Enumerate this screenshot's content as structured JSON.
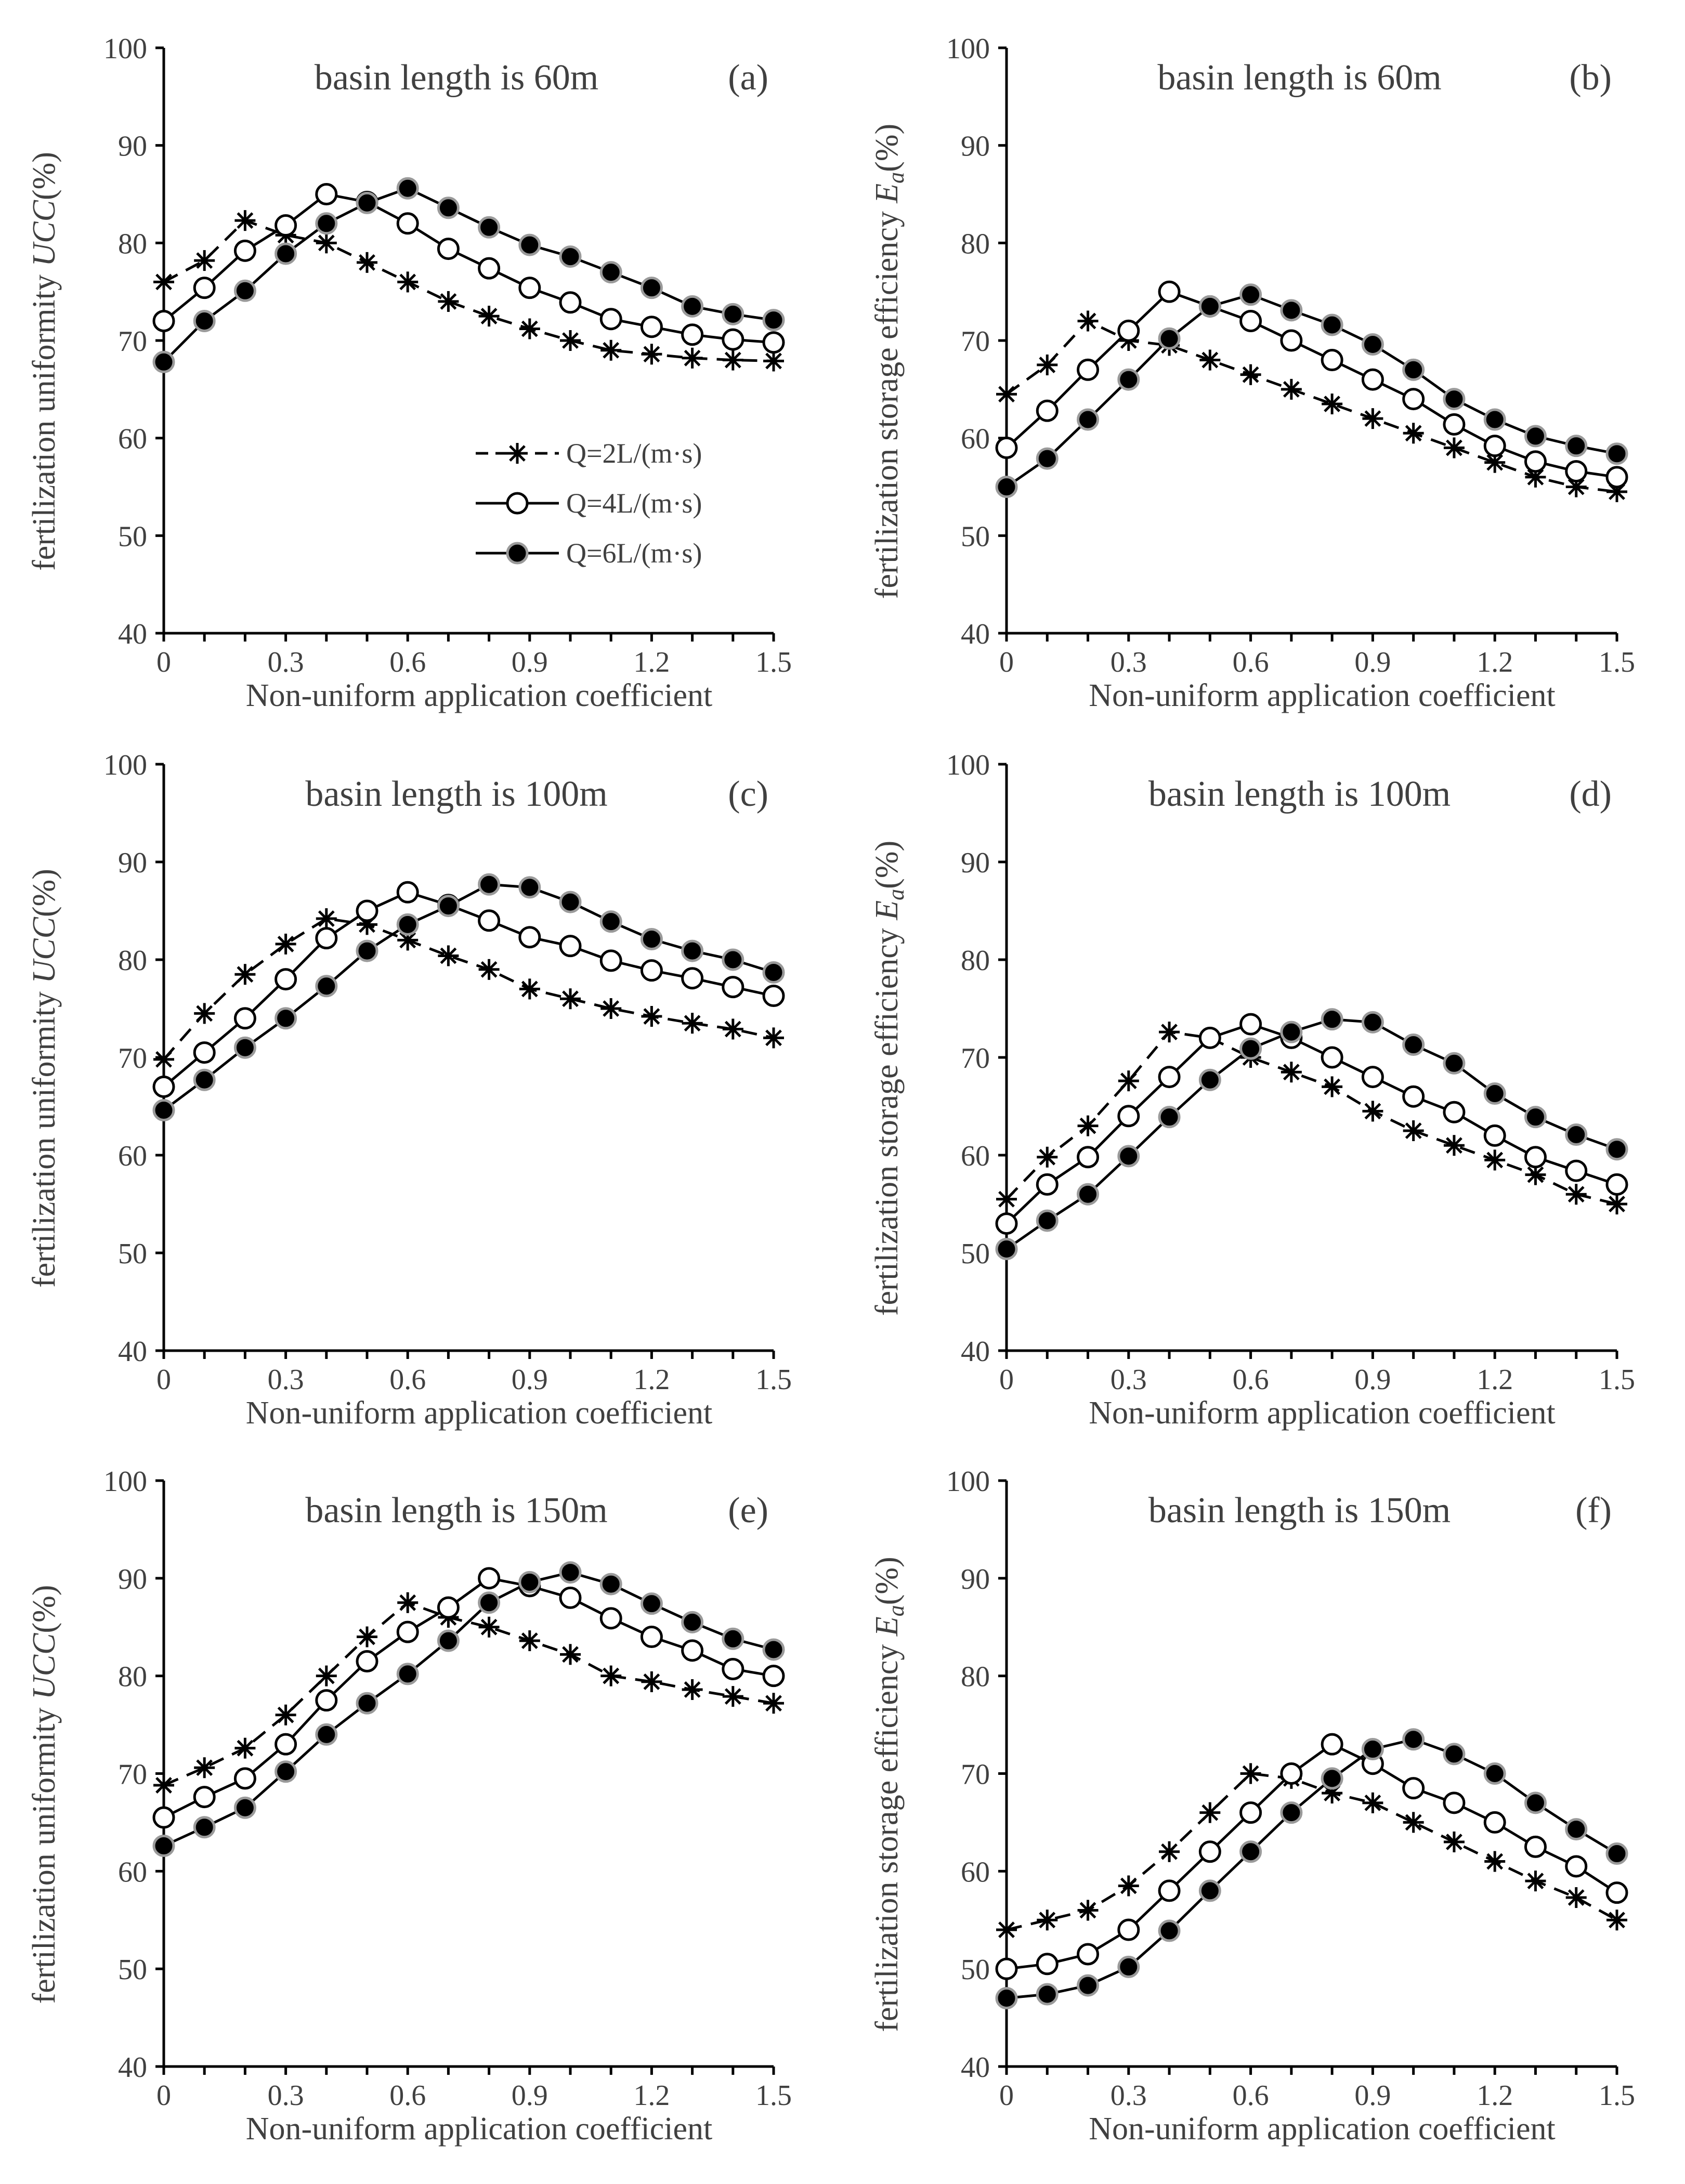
{
  "chart_data": [
    {
      "id": "a",
      "type": "line",
      "title": "basin length is 60m",
      "tag": "(a)",
      "xlabel": "Non-uniform application coefficient",
      "ylabel_text": "fertilization  uniformity ",
      "ylabel_italic": "UCC",
      "ylabel_unit": "(%)",
      "xlim": [
        0,
        1.5
      ],
      "ylim": [
        40,
        100
      ],
      "xticks": [
        "0",
        "0.3",
        "0.6",
        "0.9",
        "1.2",
        "1.5"
      ],
      "yticks": [
        "40",
        "50",
        "60",
        "70",
        "80",
        "90",
        "100"
      ],
      "x": [
        0,
        0.1,
        0.2,
        0.3,
        0.4,
        0.5,
        0.6,
        0.7,
        0.8,
        0.9,
        1.0,
        1.1,
        1.2,
        1.3,
        1.4,
        1.5
      ],
      "legend": true,
      "series": [
        {
          "name": "Q=2L/(m·s)",
          "values": [
            76,
            78.2,
            82.3,
            80.8,
            80,
            78,
            76,
            74,
            72.5,
            71.2,
            70,
            69,
            68.6,
            68.2,
            68.0,
            67.9
          ]
        },
        {
          "name": "Q=4L/(m·s)",
          "values": [
            72,
            75.4,
            79.2,
            81.8,
            85,
            84.2,
            82,
            79.4,
            77.4,
            75.4,
            73.9,
            72.2,
            71.4,
            70.6,
            70.1,
            69.8
          ]
        },
        {
          "name": "Q=6L/(m·s)",
          "values": [
            67.8,
            72,
            75.1,
            78.9,
            82,
            84.1,
            85.6,
            83.6,
            81.6,
            79.8,
            78.6,
            77,
            75.4,
            73.5,
            72.7,
            72.1
          ]
        }
      ]
    },
    {
      "id": "b",
      "type": "line",
      "title": "basin length is 60m",
      "tag": "(b)",
      "xlabel": "Non-uniform application coefficient",
      "ylabel_text": "fertilization  storage efficiency ",
      "ylabel_italic": "E",
      "ylabel_sub": "a",
      "ylabel_unit": "(%)",
      "xlim": [
        0,
        1.5
      ],
      "ylim": [
        40,
        100
      ],
      "xticks": [
        "0",
        "0.3",
        "0.6",
        "0.9",
        "1.2",
        "1.5"
      ],
      "yticks": [
        "40",
        "50",
        "60",
        "70",
        "80",
        "90",
        "100"
      ],
      "x": [
        0,
        0.1,
        0.2,
        0.3,
        0.4,
        0.5,
        0.6,
        0.7,
        0.8,
        0.9,
        1.0,
        1.1,
        1.2,
        1.3,
        1.4,
        1.5
      ],
      "legend": false,
      "series": [
        {
          "name": "Q=2L/(m·s)",
          "values": [
            64.5,
            67.5,
            72,
            70,
            69.5,
            68,
            66.5,
            65,
            63.5,
            62,
            60.5,
            59,
            57.5,
            56,
            55,
            54.5
          ]
        },
        {
          "name": "Q=4L/(m·s)",
          "values": [
            59,
            62.8,
            67,
            71,
            75,
            73.5,
            72,
            70,
            68,
            66,
            64,
            61.4,
            59.2,
            57.6,
            56.6,
            56
          ]
        },
        {
          "name": "Q=6L/(m·s)",
          "values": [
            55,
            57.9,
            61.9,
            66,
            70.2,
            73.5,
            74.7,
            73.1,
            71.6,
            69.6,
            67,
            64,
            61.9,
            60.2,
            59.2,
            58.4
          ]
        }
      ]
    },
    {
      "id": "c",
      "type": "line",
      "title": "basin length is 100m",
      "tag": "(c)",
      "xlabel": "Non-uniform application coefficient",
      "ylabel_text": "fertilization  uniformity ",
      "ylabel_italic": "UCC",
      "ylabel_unit": "(%)",
      "xlim": [
        0,
        1.5
      ],
      "ylim": [
        40,
        100
      ],
      "xticks": [
        "0",
        "0.3",
        "0.6",
        "0.9",
        "1.2",
        "1.5"
      ],
      "yticks": [
        "40",
        "50",
        "60",
        "70",
        "80",
        "90",
        "100"
      ],
      "x": [
        0,
        0.1,
        0.2,
        0.3,
        0.4,
        0.5,
        0.6,
        0.7,
        0.8,
        0.9,
        1.0,
        1.1,
        1.2,
        1.3,
        1.4,
        1.5
      ],
      "legend": false,
      "series": [
        {
          "name": "Q=2L/(m·s)",
          "values": [
            69.8,
            74.5,
            78.5,
            81.6,
            84.2,
            83.6,
            82,
            80.4,
            79,
            77,
            76,
            75,
            74.2,
            73.5,
            72.9,
            72
          ]
        },
        {
          "name": "Q=4L/(m·s)",
          "values": [
            67,
            70.5,
            74,
            78,
            82.2,
            85,
            86.9,
            85.6,
            84,
            82.3,
            81.4,
            79.9,
            78.9,
            78.1,
            77.2,
            76.3
          ]
        },
        {
          "name": "Q=6L/(m·s)",
          "values": [
            64.6,
            67.7,
            71,
            74,
            77.3,
            80.9,
            83.6,
            85.5,
            87.7,
            87.4,
            85.9,
            83.9,
            82.1,
            80.9,
            80,
            78.7
          ]
        }
      ]
    },
    {
      "id": "d",
      "type": "line",
      "title": "basin length is 100m",
      "tag": "(d)",
      "xlabel": "Non-uniform application coefficient",
      "ylabel_text": "fertilization  storage efficiency ",
      "ylabel_italic": "E",
      "ylabel_sub": "a",
      "ylabel_unit": "(%)",
      "xlim": [
        0,
        1.5
      ],
      "ylim": [
        40,
        100
      ],
      "xticks": [
        "0",
        "0.3",
        "0.6",
        "0.9",
        "1.2",
        "1.5"
      ],
      "yticks": [
        "40",
        "50",
        "60",
        "70",
        "80",
        "90",
        "100"
      ],
      "x": [
        0,
        0.1,
        0.2,
        0.3,
        0.4,
        0.5,
        0.6,
        0.7,
        0.8,
        0.9,
        1.0,
        1.1,
        1.2,
        1.3,
        1.4,
        1.5
      ],
      "legend": false,
      "series": [
        {
          "name": "Q=2L/(m·s)",
          "values": [
            55.5,
            59.8,
            63,
            67.6,
            72.6,
            72,
            70,
            68.5,
            67,
            64.5,
            62.5,
            61,
            59.5,
            58,
            56,
            55
          ]
        },
        {
          "name": "Q=4L/(m·s)",
          "values": [
            53,
            57,
            59.8,
            64,
            68,
            72,
            73.4,
            72,
            70,
            68,
            66,
            64.4,
            62,
            59.8,
            58.4,
            57
          ]
        },
        {
          "name": "Q=6L/(m·s)",
          "values": [
            50.4,
            53.3,
            56,
            59.9,
            63.9,
            67.7,
            70.9,
            72.6,
            73.9,
            73.6,
            71.3,
            69.4,
            66.3,
            63.9,
            62.1,
            60.6
          ]
        }
      ]
    },
    {
      "id": "e",
      "type": "line",
      "title": "basin length is 150m",
      "tag": "(e)",
      "xlabel": "Non-uniform application coefficient",
      "ylabel_text": "fertilization  uniformity ",
      "ylabel_italic": "UCC",
      "ylabel_unit": "(%)",
      "xlim": [
        0,
        1.5
      ],
      "ylim": [
        40,
        100
      ],
      "xticks": [
        "0",
        "0.3",
        "0.6",
        "0.9",
        "1.2",
        "1.5"
      ],
      "yticks": [
        "40",
        "50",
        "60",
        "70",
        "80",
        "90",
        "100"
      ],
      "x": [
        0,
        0.1,
        0.2,
        0.3,
        0.4,
        0.5,
        0.6,
        0.7,
        0.8,
        0.9,
        1.0,
        1.1,
        1.2,
        1.3,
        1.4,
        1.5
      ],
      "legend": false,
      "series": [
        {
          "name": "Q=2L/(m·s)",
          "values": [
            68.8,
            70.6,
            72.6,
            76,
            80,
            84,
            87.5,
            86,
            85,
            83.6,
            82.2,
            80,
            79.4,
            78.6,
            77.9,
            77.2
          ]
        },
        {
          "name": "Q=4L/(m·s)",
          "values": [
            65.5,
            67.6,
            69.5,
            73,
            77.5,
            81.5,
            84.5,
            87,
            90,
            89.2,
            88,
            85.9,
            84,
            82.6,
            80.7,
            80
          ]
        },
        {
          "name": "Q=6L/(m·s)",
          "values": [
            62.6,
            64.5,
            66.5,
            70.2,
            74,
            77.2,
            80.2,
            83.6,
            87.5,
            89.6,
            90.6,
            89.4,
            87.4,
            85.5,
            83.8,
            82.7
          ]
        }
      ]
    },
    {
      "id": "f",
      "type": "line",
      "title": "basin length is 150m",
      "tag": "(f)",
      "xlabel": "Non-uniform application coefficient",
      "ylabel_text": "fertilization  storage efficiency ",
      "ylabel_italic": "E",
      "ylabel_sub": "a",
      "ylabel_unit": "(%)",
      "xlim": [
        0,
        1.5
      ],
      "ylim": [
        40,
        100
      ],
      "xticks": [
        "0",
        "0.3",
        "0.6",
        "0.9",
        "1.2",
        "1.5"
      ],
      "yticks": [
        "40",
        "50",
        "60",
        "70",
        "80",
        "90",
        "100"
      ],
      "x": [
        0,
        0.1,
        0.2,
        0.3,
        0.4,
        0.5,
        0.6,
        0.7,
        0.8,
        0.9,
        1.0,
        1.1,
        1.2,
        1.3,
        1.4,
        1.5
      ],
      "legend": false,
      "series": [
        {
          "name": "Q=2L/(m·s)",
          "values": [
            54,
            55,
            56,
            58.5,
            62,
            66,
            70,
            69.5,
            68,
            67,
            65,
            63,
            61,
            59,
            57.3,
            55
          ]
        },
        {
          "name": "Q=4L/(m·s)",
          "values": [
            50,
            50.5,
            51.5,
            54,
            58,
            62,
            66,
            70,
            73,
            71,
            68.5,
            67,
            65,
            62.5,
            60.5,
            57.8
          ]
        },
        {
          "name": "Q=6L/(m·s)",
          "values": [
            47,
            47.4,
            48.3,
            50.2,
            53.9,
            58,
            62,
            66,
            69.5,
            72.5,
            73.5,
            72,
            70,
            67,
            64.3,
            61.8
          ]
        }
      ]
    }
  ]
}
